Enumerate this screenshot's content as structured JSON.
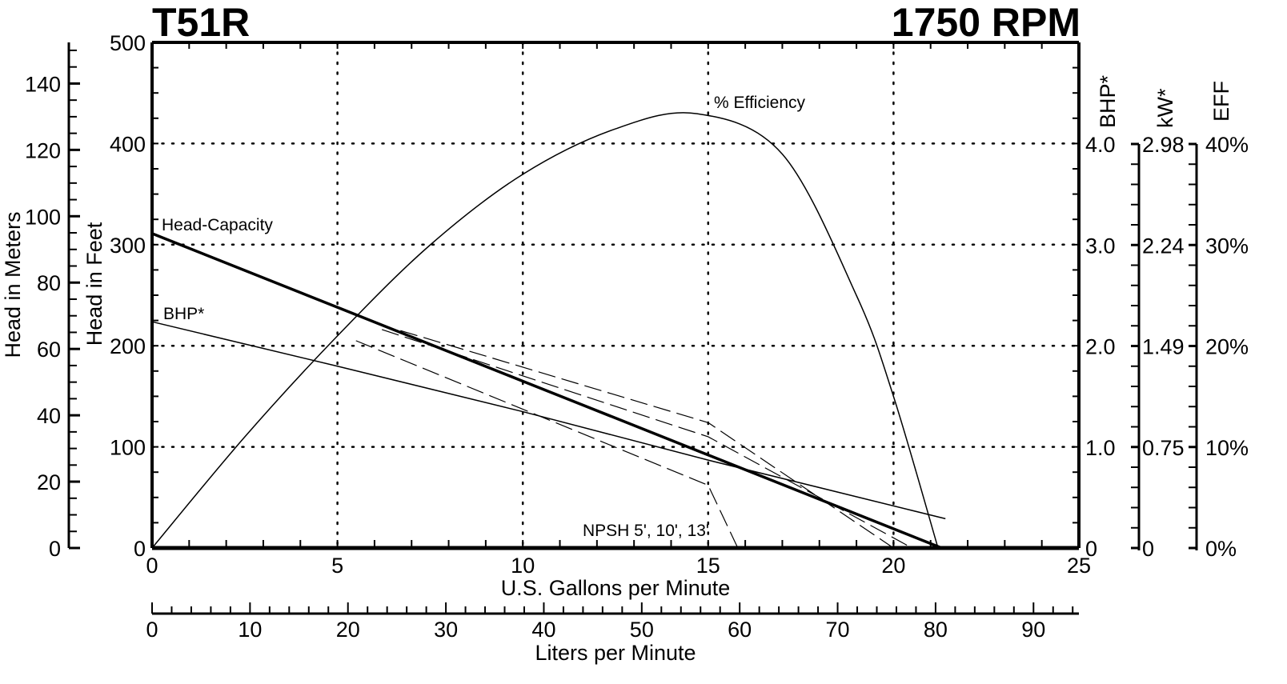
{
  "header": {
    "model": "T51R",
    "speed": "1750 RPM"
  },
  "colors": {
    "ink": "#000000",
    "background": "#ffffff"
  },
  "chart_data": {
    "type": "line",
    "title": "T51R",
    "subtitle": "1750 RPM",
    "xlabel": "U.S. Gallons per Minute",
    "xlabel_secondary": "Liters per Minute",
    "ylabel": "Head in Feet",
    "ylabel_secondary": "Head in Meters",
    "right_axes": [
      {
        "label": "BHP*",
        "ticks": [
          "0",
          "1.0",
          "2.0",
          "3.0",
          "4.0"
        ],
        "range": [
          0,
          4.0
        ]
      },
      {
        "label": "kW*",
        "ticks": [
          "0",
          "0.75",
          "1.49",
          "2.24",
          "2.98"
        ],
        "range": [
          0,
          2.98
        ]
      },
      {
        "label": "EFF",
        "ticks": [
          "0%",
          "10%",
          "20%",
          "30%",
          "40%"
        ],
        "range": [
          0,
          40
        ]
      }
    ],
    "xlim": [
      0,
      25
    ],
    "ylim": [
      0,
      500
    ],
    "x_ticks": [
      "0",
      "5",
      "10",
      "15",
      "20",
      "25"
    ],
    "y_ticks": [
      "0",
      "100",
      "200",
      "300",
      "400",
      "500"
    ],
    "meters_ticks": [
      "0",
      "20",
      "40",
      "60",
      "80",
      "100",
      "120",
      "140"
    ],
    "lpm_ticks": [
      "0",
      "10",
      "20",
      "30",
      "40",
      "50",
      "60",
      "70",
      "80",
      "90"
    ],
    "grid": true,
    "series": [
      {
        "name": "Head-Capacity",
        "unit": "ft",
        "x": [
          0,
          5,
          10,
          15,
          20,
          21.3
        ],
        "values": [
          311,
          238,
          165,
          92,
          19,
          0
        ]
      },
      {
        "name": "BHP*",
        "unit": "hp",
        "x": [
          0,
          5,
          10,
          15,
          21.4
        ],
        "values": [
          2.24,
          1.8,
          1.35,
          0.87,
          0.29
        ]
      },
      {
        "name": "% Efficiency",
        "unit": "%",
        "x": [
          0,
          2.5,
          5,
          7.5,
          10,
          12.5,
          14.7,
          17,
          19,
          20,
          21.2
        ],
        "values": [
          0,
          11,
          21,
          30,
          37,
          41.5,
          43,
          39,
          25,
          15,
          0
        ]
      },
      {
        "name": "NPSH 5'",
        "unit": "ft",
        "x": [
          6.7,
          15,
          20
        ],
        "values": [
          215,
          124,
          0
        ]
      },
      {
        "name": "NPSH 10'",
        "unit": "ft",
        "x": [
          6.2,
          15,
          20.5
        ],
        "values": [
          216,
          110,
          0
        ]
      },
      {
        "name": "NPSH 13'",
        "unit": "ft",
        "x": [
          5.5,
          15,
          15.8
        ],
        "values": [
          205,
          62,
          0
        ]
      }
    ],
    "annotations": [
      "Head-Capacity",
      "BHP*",
      "% Efficiency",
      "NPSH 5', 10', 13'"
    ]
  }
}
